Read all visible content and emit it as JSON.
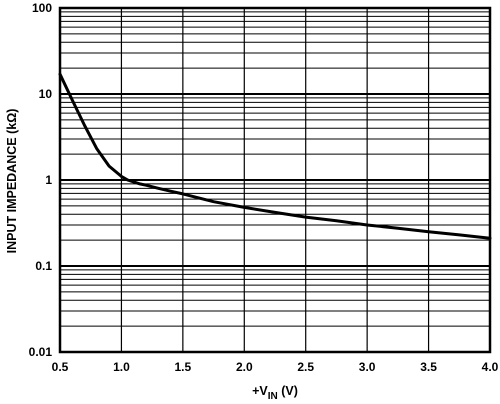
{
  "chart_data": {
    "type": "line",
    "title": "",
    "xlabel": "+V",
    "xlabel_subscript": "IN",
    "xlabel_unit": " (V)",
    "ylabel": "INPUT IMPEDANCE (kΩ)",
    "y_scale": "log",
    "xlim": [
      0.5,
      4.0
    ],
    "ylim": [
      0.01,
      100
    ],
    "x_ticks": [
      "0.5",
      "1.0",
      "1.5",
      "2.0",
      "2.5",
      "3.0",
      "3.5",
      "4.0"
    ],
    "y_ticks": [
      "100",
      "10",
      "1",
      "0.1",
      "0.01"
    ],
    "grid": true,
    "legend": "none",
    "line_color": "#000000",
    "series": [
      {
        "x": [
          0.5,
          0.6,
          0.7,
          0.8,
          0.9,
          1.0,
          1.05,
          1.1,
          1.15,
          1.2,
          1.3,
          1.4,
          1.5,
          1.75,
          2.0,
          2.25,
          2.5,
          2.75,
          3.0,
          3.25,
          3.5,
          3.75,
          4.0
        ],
        "y": [
          17,
          8.5,
          4.3,
          2.3,
          1.45,
          1.1,
          1.0,
          0.95,
          0.9,
          0.87,
          0.8,
          0.74,
          0.69,
          0.56,
          0.48,
          0.42,
          0.37,
          0.335,
          0.3,
          0.275,
          0.25,
          0.23,
          0.21
        ]
      }
    ]
  }
}
